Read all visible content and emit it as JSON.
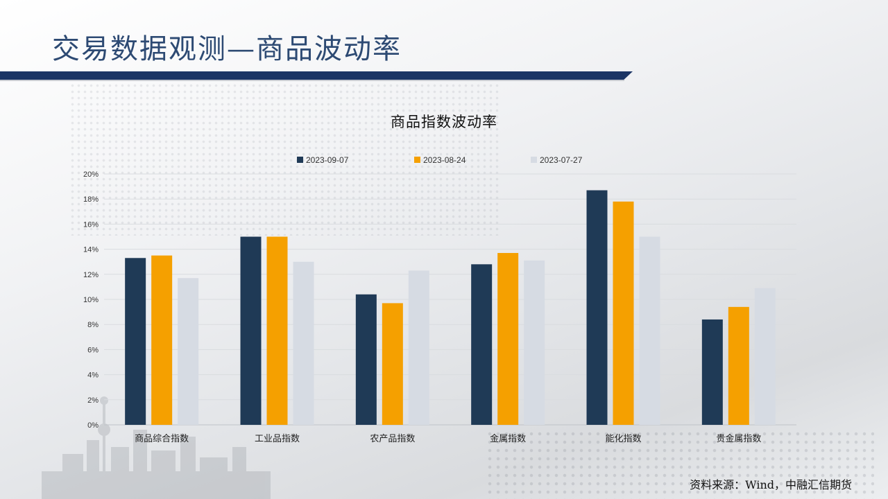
{
  "slide": {
    "title": "交易数据观测—商品波动率",
    "source": "资料来源：Wind，中融汇信期货"
  },
  "colors": {
    "title_bar": "#1b3565",
    "title_text": "#2d4a73"
  },
  "chart_data": {
    "type": "bar",
    "title": "商品指数波动率",
    "xlabel": "",
    "ylabel": "",
    "categories": [
      "商品综合指数",
      "工业品指数",
      "农产品指数",
      "金属指数",
      "能化指数",
      "贵金属指数"
    ],
    "series": [
      {
        "name": "2023-09-07",
        "color": "#1f3a56",
        "values": [
          13.3,
          15.0,
          10.4,
          12.8,
          18.7,
          8.4
        ]
      },
      {
        "name": "2023-08-24",
        "color": "#f5a000",
        "values": [
          13.5,
          15.0,
          9.7,
          13.7,
          17.8,
          9.4
        ]
      },
      {
        "name": "2023-07-27",
        "color": "#d6dbe3",
        "values": [
          11.7,
          13.0,
          12.3,
          13.1,
          15.0,
          10.9
        ]
      }
    ],
    "ylim": [
      0,
      20
    ],
    "yticks": [
      0,
      2,
      4,
      6,
      8,
      10,
      12,
      14,
      16,
      18,
      20
    ],
    "ytick_format": "percent",
    "grid": true,
    "legend": "top"
  }
}
